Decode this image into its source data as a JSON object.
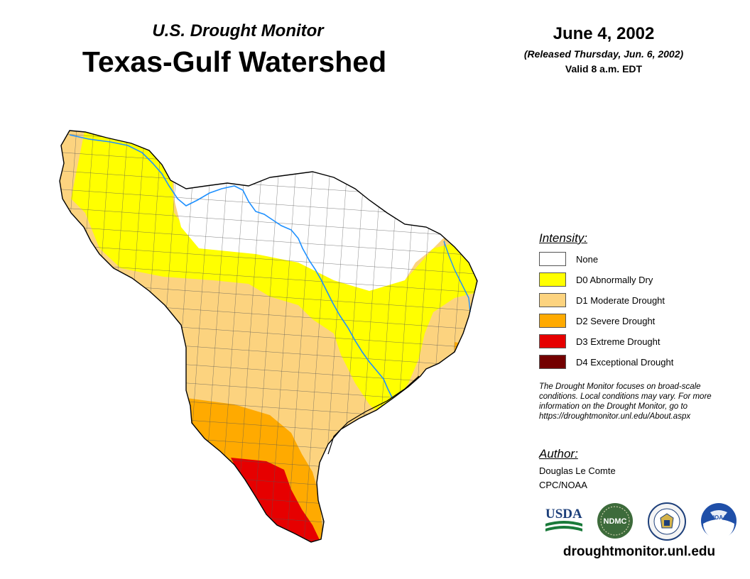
{
  "header": {
    "product": "U.S. Drought Monitor",
    "region": "Texas-Gulf Watershed",
    "date": "June 4, 2002",
    "released": "(Released Thursday, Jun. 6, 2002)",
    "valid": "Valid 8 a.m. EDT"
  },
  "legend": {
    "title": "Intensity:",
    "items": [
      {
        "label": "None",
        "color": "#ffffff"
      },
      {
        "label": "D0 Abnormally Dry",
        "color": "#ffff00"
      },
      {
        "label": "D1 Moderate Drought",
        "color": "#fcd37f"
      },
      {
        "label": "D2 Severe Drought",
        "color": "#ffaa00"
      },
      {
        "label": "D3 Extreme Drought",
        "color": "#e60000"
      },
      {
        "label": "D4 Exceptional Drought",
        "color": "#730000"
      }
    ]
  },
  "disclaimer": "The Drought Monitor focuses on broad-scale conditions. Local conditions may vary. For more information on the Drought Monitor, go to https://droughtmonitor.unl.edu/About.aspx",
  "author": {
    "heading": "Author:",
    "name": "Douglas Le Comte",
    "org": "CPC/NOAA"
  },
  "logos": {
    "usda": "USDA",
    "ndmc": "NDMC",
    "noaa": "NOAA"
  },
  "website": "droughtmonitor.unl.edu",
  "colors": {
    "river": "#1e90ff",
    "county_lines": "#555555",
    "outline": "#000000"
  }
}
